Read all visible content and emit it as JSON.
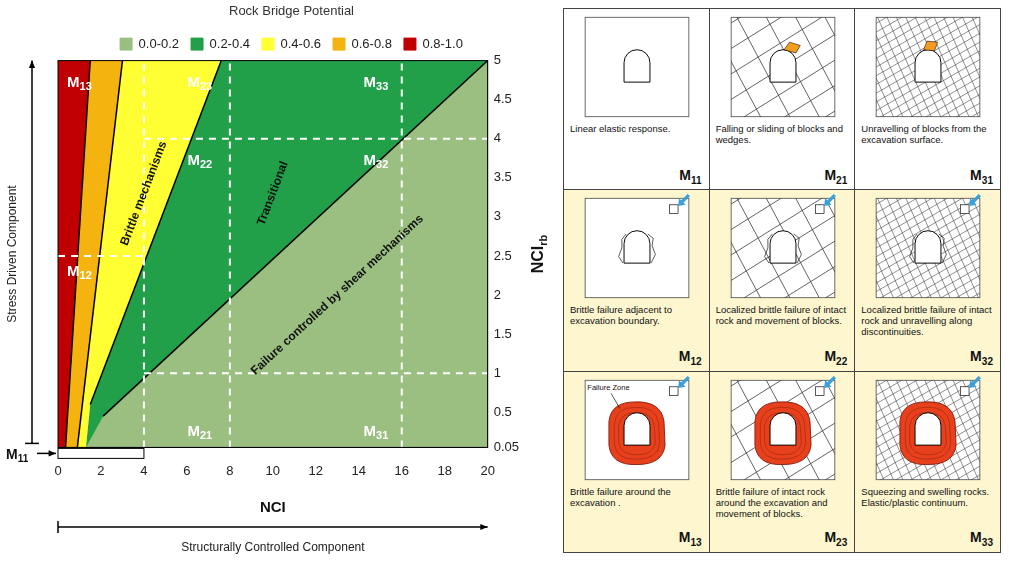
{
  "chart_data": {
    "type": "polygon",
    "title": "Rock Bridge Potential",
    "xlabel": "NCI",
    "ylabel": "NCIrb",
    "xlim": [
      0,
      20
    ],
    "xticks": [
      0,
      2,
      4,
      6,
      8,
      10,
      12,
      14,
      16,
      18,
      20
    ],
    "ylim": [
      0.05,
      5
    ],
    "yticks": [
      0.05,
      0.5,
      1,
      1.5,
      2,
      2.5,
      3,
      3.5,
      4,
      4.5,
      5
    ],
    "legend": "top",
    "grid": false,
    "series": [
      {
        "name": "0.0-0.2",
        "color": "#9bbf80",
        "x": [
          0,
          20,
          20,
          0
        ],
        "y": [
          0.05,
          0.05,
          5,
          5
        ]
      },
      {
        "name": "0.2-0.4",
        "color": "#22a049",
        "x": [
          1.3,
          2.1,
          20,
          7.6,
          1.5
        ],
        "y": [
          0.05,
          0.45,
          5,
          5,
          0.6
        ]
      },
      {
        "name": "0.4-0.6",
        "color": "#ffff33",
        "x": [
          0.9,
          1.3,
          1.5,
          7.6,
          3.0
        ],
        "y": [
          0.05,
          0.05,
          0.6,
          5,
          5
        ]
      },
      {
        "name": "0.6-0.8",
        "color": "#f4b30e",
        "x": [
          0.35,
          0.9,
          3.0,
          1.5
        ],
        "y": [
          0.05,
          0.05,
          5,
          5
        ]
      },
      {
        "name": "0.8-1.0",
        "color": "#c00000",
        "x": [
          0,
          0.35,
          1.5,
          0
        ],
        "y": [
          0.05,
          0.05,
          5,
          5
        ]
      }
    ],
    "boundaries": [
      {
        "x": [
          0.35,
          1.5
        ],
        "y": [
          0.05,
          5
        ]
      },
      {
        "x": [
          0.9,
          3.0
        ],
        "y": [
          0.05,
          5
        ]
      },
      {
        "x": [
          1.5,
          7.6
        ],
        "y": [
          0.6,
          5
        ]
      },
      {
        "x": [
          2.1,
          20
        ],
        "y": [
          0.45,
          5
        ]
      }
    ],
    "dividers": [
      {
        "x": [
          4,
          4
        ],
        "y": [
          0.05,
          5
        ]
      },
      {
        "x": [
          8,
          8
        ],
        "y": [
          0.05,
          5
        ]
      },
      {
        "x": [
          16,
          16
        ],
        "y": [
          0.05,
          5
        ]
      },
      {
        "x": [
          0,
          4
        ],
        "y": [
          2.5,
          2.5
        ]
      },
      {
        "x": [
          4,
          20
        ],
        "y": [
          1,
          1
        ]
      },
      {
        "x": [
          4,
          20
        ],
        "y": [
          4,
          4
        ]
      }
    ],
    "zone_labels": [
      {
        "text": "M13",
        "x": 1.0,
        "y": 4.72
      },
      {
        "text": "M12",
        "x": 1.0,
        "y": 2.3
      },
      {
        "text": "M23",
        "x": 6.6,
        "y": 4.72
      },
      {
        "text": "M22",
        "x": 6.6,
        "y": 3.72
      },
      {
        "text": "M21",
        "x": 6.6,
        "y": 0.25
      },
      {
        "text": "M33",
        "x": 14.8,
        "y": 4.72
      },
      {
        "text": "M32",
        "x": 14.8,
        "y": 3.72
      },
      {
        "text": "M31",
        "x": 14.8,
        "y": 0.25
      }
    ],
    "annotations": [
      {
        "text": "Brittle mechanisms",
        "x": 4.0,
        "y": 3.3
      },
      {
        "text": "Transitional",
        "x": 10.0,
        "y": 3.3
      },
      {
        "text": "Failure controlled by shear mechanisms",
        "x": 13.0,
        "y": 2.0
      }
    ]
  },
  "axis_arrows": {
    "vertical": "Stress Driven Component",
    "horizontal": "Structurally Controlled Component",
    "corner_label": "M11",
    "corner_box_x": [
      0,
      4
    ]
  },
  "mechanism_table": {
    "rows": [
      [
        {
          "label": "M11",
          "caption": "Linear elastic response."
        },
        {
          "label": "M21",
          "caption": "Falling or sliding of blocks and wedges."
        },
        {
          "label": "M31",
          "caption": "Unravelling of blocks from the excavation surface."
        }
      ],
      [
        {
          "label": "M12",
          "caption": "Brittle failure adjacent to excavation boundary."
        },
        {
          "label": "M22",
          "caption": "Localized brittle failure of intact rock and movement of blocks."
        },
        {
          "label": "M32",
          "caption": "Localized brittle failure of intact rock and unravelling along discontinuities."
        }
      ],
      [
        {
          "label": "M13",
          "caption": "Brittle failure around the excavation .",
          "callout": "Failure Zone"
        },
        {
          "label": "M23",
          "caption": "Brittle failure of intact rock around the excavation and movement of blocks."
        },
        {
          "label": "M33",
          "caption": "Squeezing and swelling rocks. Elastic/plastic continuum."
        }
      ]
    ]
  }
}
